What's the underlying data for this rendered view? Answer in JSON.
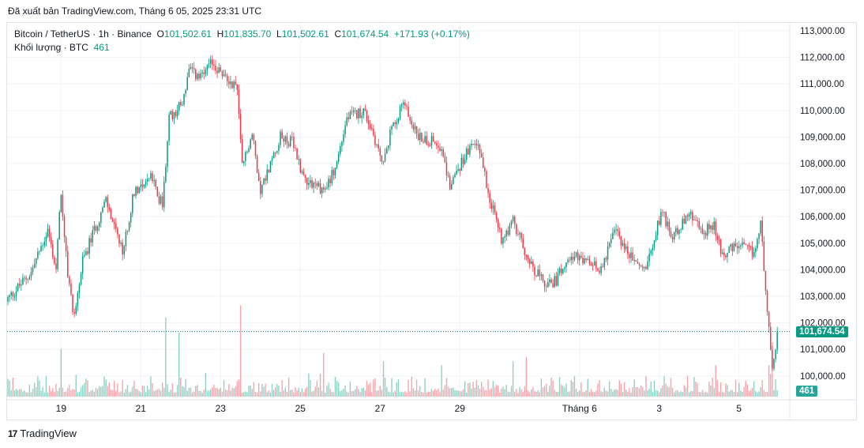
{
  "published": "Đã xuất bản TradingView.com, Tháng 6 05, 2025 23:31 UTC",
  "legend": {
    "symbol": "Bitcoin / TetherUS · 1h · Binance",
    "o_label": "O",
    "o": "101,502.61",
    "h_label": "H",
    "h": "101,835.70",
    "l_label": "L",
    "l": "101,502.61",
    "c_label": "C",
    "c": "101,674.54",
    "change": "+171.93 (+0.17%)",
    "volume_label": "Khối lượng · BTC",
    "volume": "461"
  },
  "price_tag": "101,674.54",
  "volume_tag": "461",
  "branding": "TradingView",
  "colors": {
    "up": "#089981",
    "down": "#F23645",
    "grid": "#f0f3fa"
  },
  "chart_data": {
    "type": "candlestick",
    "title": "Bitcoin / TetherUS 1h Binance",
    "ylim": [
      100000,
      113000
    ],
    "y_ticks": [
      {
        "v": 113000,
        "label": "113,000.00"
      },
      {
        "v": 112000,
        "label": "112,000.00"
      },
      {
        "v": 111000,
        "label": "111,000.00"
      },
      {
        "v": 110000,
        "label": "110,000.00"
      },
      {
        "v": 109000,
        "label": "109,000.00"
      },
      {
        "v": 108000,
        "label": "108,000.00"
      },
      {
        "v": 107000,
        "label": "107,000.00"
      },
      {
        "v": 106000,
        "label": "106,000.00"
      },
      {
        "v": 105000,
        "label": "105,000.00"
      },
      {
        "v": 104000,
        "label": "104,000.00"
      },
      {
        "v": 103000,
        "label": "103,000.00"
      },
      {
        "v": 102000,
        "label": "102,000.00"
      },
      {
        "v": 101000,
        "label": "101,000.00"
      },
      {
        "v": 100000,
        "label": "100,000.00"
      }
    ],
    "x_ticks": [
      {
        "h": 32,
        "label": "19"
      },
      {
        "h": 80,
        "label": "21"
      },
      {
        "h": 128,
        "label": "23"
      },
      {
        "h": 176,
        "label": "25"
      },
      {
        "h": 224,
        "label": "27"
      },
      {
        "h": 272,
        "label": "29"
      },
      {
        "h": 344,
        "label": "Tháng 6"
      },
      {
        "h": 392,
        "label": "3"
      },
      {
        "h": 440,
        "label": "5"
      }
    ],
    "hours": 464,
    "last_close": 101674.54,
    "close_anchors": [
      [
        0,
        102900
      ],
      [
        14,
        103900
      ],
      [
        24,
        105500
      ],
      [
        29,
        104000
      ],
      [
        32,
        107000
      ],
      [
        36,
        103700
      ],
      [
        40,
        102250
      ],
      [
        45,
        104300
      ],
      [
        52,
        105500
      ],
      [
        59,
        106600
      ],
      [
        69,
        104600
      ],
      [
        76,
        107000
      ],
      [
        86,
        107500
      ],
      [
        93,
        106400
      ],
      [
        97,
        109700
      ],
      [
        105,
        110300
      ],
      [
        109,
        111500
      ],
      [
        116,
        111200
      ],
      [
        123,
        111800
      ],
      [
        131,
        111200
      ],
      [
        138,
        110900
      ],
      [
        141,
        107900
      ],
      [
        147,
        109100
      ],
      [
        152,
        107000
      ],
      [
        164,
        109000
      ],
      [
        171,
        108800
      ],
      [
        178,
        107500
      ],
      [
        190,
        107000
      ],
      [
        197,
        107800
      ],
      [
        204,
        109700
      ],
      [
        214,
        110000
      ],
      [
        219,
        109300
      ],
      [
        226,
        107900
      ],
      [
        231,
        109400
      ],
      [
        238,
        110300
      ],
      [
        247,
        109000
      ],
      [
        259,
        108800
      ],
      [
        266,
        107200
      ],
      [
        276,
        108400
      ],
      [
        283,
        108800
      ],
      [
        290,
        106700
      ],
      [
        297,
        105200
      ],
      [
        304,
        105800
      ],
      [
        314,
        104300
      ],
      [
        323,
        103400
      ],
      [
        330,
        103600
      ],
      [
        337,
        104600
      ],
      [
        347,
        104300
      ],
      [
        356,
        104000
      ],
      [
        366,
        105500
      ],
      [
        373,
        104600
      ],
      [
        383,
        104000
      ],
      [
        394,
        106300
      ],
      [
        399,
        105200
      ],
      [
        410,
        106100
      ],
      [
        418,
        105400
      ],
      [
        425,
        105700
      ],
      [
        430,
        104600
      ],
      [
        440,
        104900
      ],
      [
        449,
        104600
      ],
      [
        453,
        105700
      ],
      [
        456,
        103400
      ],
      [
        460,
        100200
      ],
      [
        463,
        101674.54
      ]
    ],
    "volume_spikes_btc": [
      [
        32,
        3500
      ],
      [
        95,
        5800
      ],
      [
        103,
        4700
      ],
      [
        140,
        6700
      ],
      [
        190,
        3200
      ],
      [
        226,
        2600
      ],
      [
        261,
        2300
      ],
      [
        304,
        2600
      ],
      [
        312,
        2900
      ],
      [
        426,
        2300
      ],
      [
        458,
        2300
      ],
      [
        460,
        4000
      ],
      [
        463,
        461
      ]
    ]
  }
}
